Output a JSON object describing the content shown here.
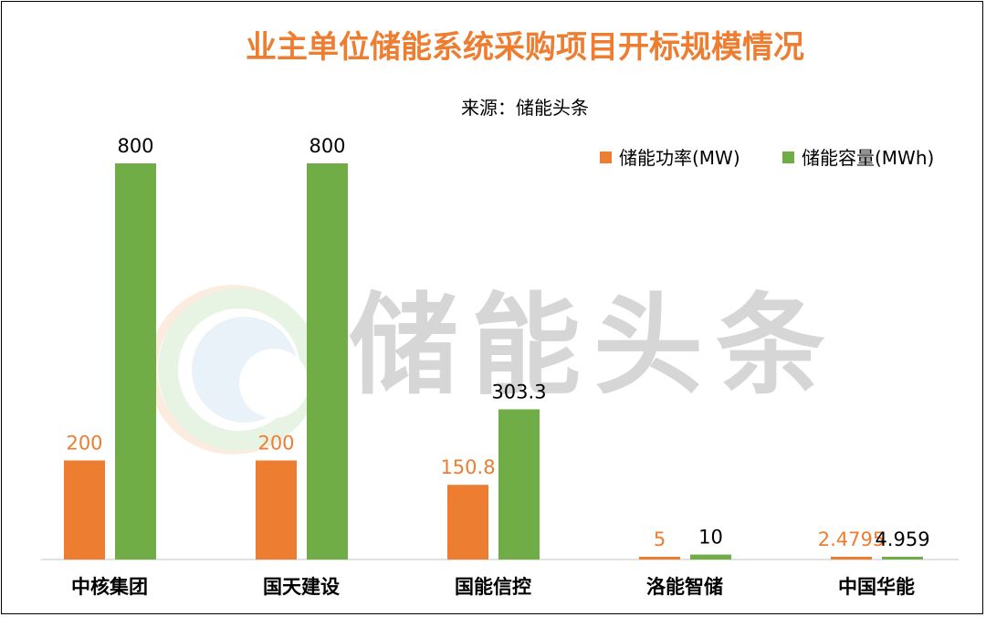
{
  "chart_data": {
    "type": "bar",
    "title": "业主单位储能系统采购项目开标规模情况",
    "subtitle": "来源：储能头条",
    "watermark": "储能头条",
    "legend_position": "top-right",
    "categories": [
      "中核集团",
      "国天建设",
      "国能信控",
      "洛能智储",
      "中国华能"
    ],
    "series": [
      {
        "name": "储能功率(MW)",
        "color": "#ed7d31",
        "values": [
          200,
          200,
          150.8,
          5,
          2.4795
        ],
        "labels": [
          "200",
          "200",
          "150.8",
          "5",
          "2.4795"
        ]
      },
      {
        "name": "储能容量(MWh)",
        "color": "#70ad47",
        "values": [
          800,
          800,
          303.3,
          10,
          4.959
        ],
        "labels": [
          "800",
          "800",
          "303.3",
          "10",
          "4.959"
        ]
      }
    ],
    "ylim": [
      0,
      800
    ],
    "grid": false,
    "title_color": "#ed7d31"
  }
}
